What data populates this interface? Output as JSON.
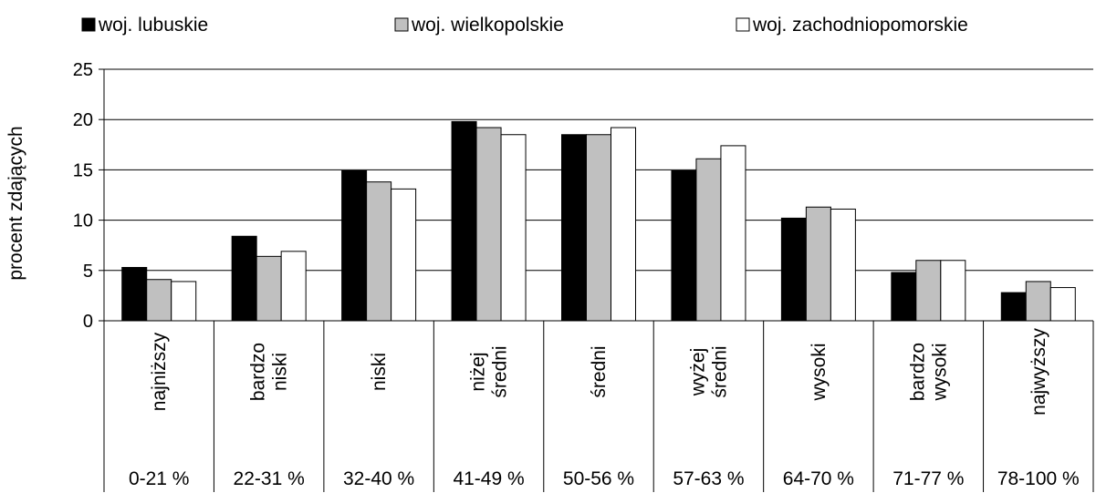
{
  "chart_data": {
    "type": "bar",
    "title": "",
    "xlabel": "",
    "ylabel": "procent zdających",
    "ylim": [
      0,
      25
    ],
    "yticks": [
      0,
      5,
      10,
      15,
      20,
      25
    ],
    "grid": true,
    "legend_position": "top",
    "categories": [
      {
        "label_lines": [
          "najniższy"
        ],
        "range": "0-21 %"
      },
      {
        "label_lines": [
          "bardzo",
          "niski"
        ],
        "range": "22-31 %"
      },
      {
        "label_lines": [
          "niski"
        ],
        "range": "32-40 %"
      },
      {
        "label_lines": [
          "niżej",
          "średni"
        ],
        "range": "41-49 %"
      },
      {
        "label_lines": [
          "średni"
        ],
        "range": "50-56 %"
      },
      {
        "label_lines": [
          "wyżej",
          "średni"
        ],
        "range": "57-63 %"
      },
      {
        "label_lines": [
          "wysoki"
        ],
        "range": "64-70 %"
      },
      {
        "label_lines": [
          "bardzo",
          "wysoki"
        ],
        "range": "71-77 %"
      },
      {
        "label_lines": [
          "najwyższy"
        ],
        "range": "78-100 %"
      }
    ],
    "series": [
      {
        "name": "woj. lubuskie",
        "color": "#000000",
        "values": [
          5.3,
          8.4,
          14.9,
          19.8,
          18.5,
          14.9,
          10.2,
          4.8,
          2.8
        ]
      },
      {
        "name": "woj. wielkopolskie",
        "color": "#c0c0c0",
        "values": [
          4.1,
          6.4,
          13.8,
          19.2,
          18.5,
          16.1,
          11.3,
          6.0,
          3.9
        ]
      },
      {
        "name": "woj. zachodniopomorskie",
        "color": "#ffffff",
        "values": [
          3.9,
          6.9,
          13.1,
          18.5,
          19.2,
          17.4,
          11.1,
          6.0,
          3.3
        ]
      }
    ]
  }
}
